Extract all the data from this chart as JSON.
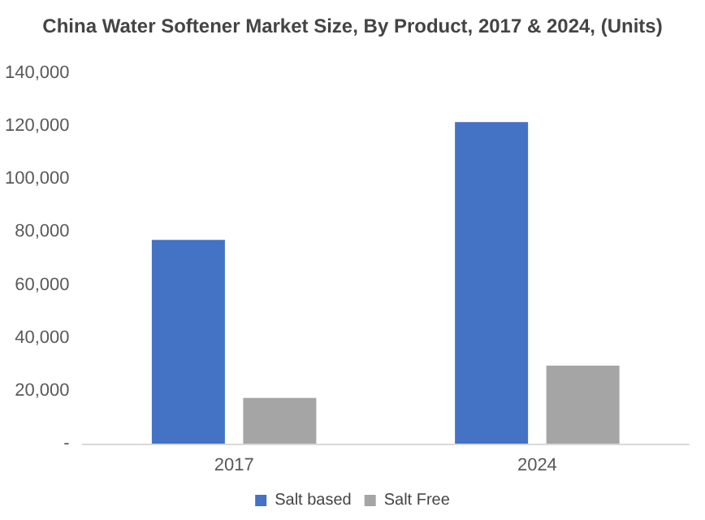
{
  "chart_data": {
    "type": "bar",
    "title": "China Water Softener Market Size, By Product, 2017 & 2024, (Units)",
    "categories": [
      "2017",
      "2024"
    ],
    "series": [
      {
        "name": "Salt based",
        "color": "#4472c4",
        "values": [
          77000,
          121500
        ]
      },
      {
        "name": "Salt Free",
        "color": "#a5a5a5",
        "values": [
          17300,
          29500
        ]
      }
    ],
    "ylim": [
      0,
      140000
    ],
    "yticks": [
      {
        "value": 0,
        "label": "-"
      },
      {
        "value": 20000,
        "label": "20,000"
      },
      {
        "value": 40000,
        "label": "40,000"
      },
      {
        "value": 60000,
        "label": "60,000"
      },
      {
        "value": 80000,
        "label": "80,000"
      },
      {
        "value": 100000,
        "label": "100,000"
      },
      {
        "value": 120000,
        "label": "120,000"
      },
      {
        "value": 140000,
        "label": "140,000"
      }
    ],
    "grid": false,
    "legend": "bottom"
  }
}
